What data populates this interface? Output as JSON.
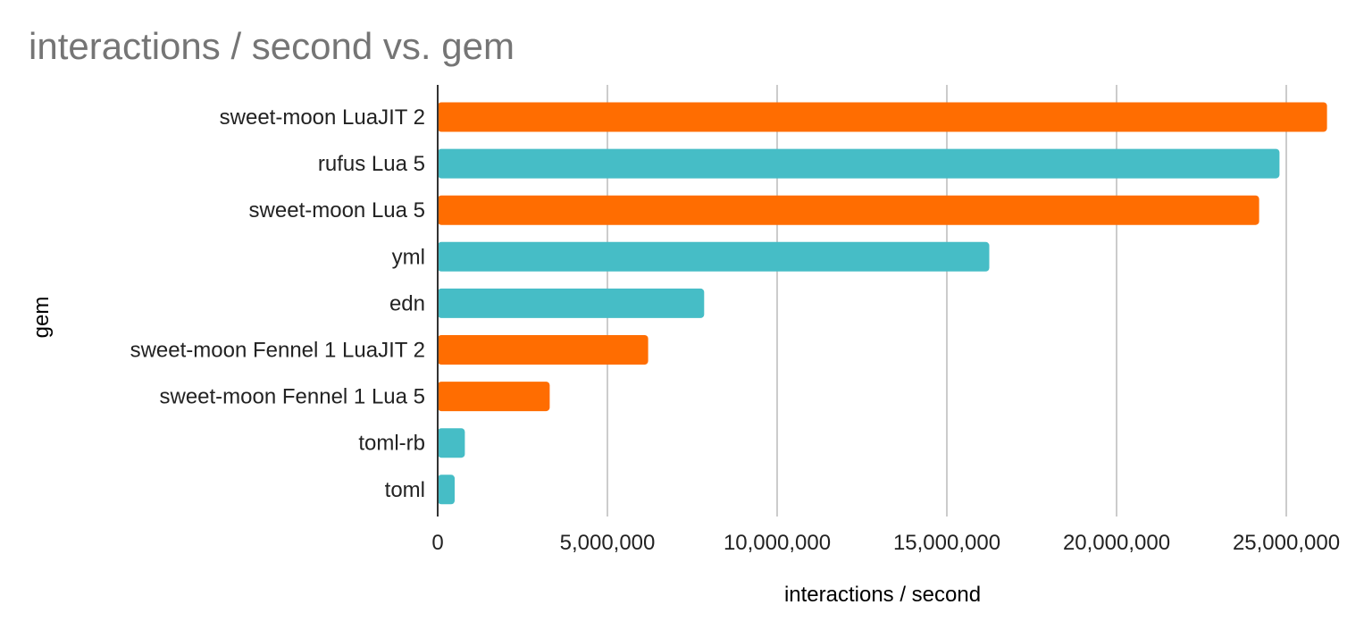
{
  "chart_data": {
    "type": "bar",
    "orientation": "horizontal",
    "title": "interactions / second vs. gem",
    "xlabel": "interactions / second",
    "ylabel": "gem",
    "xlim": [
      0,
      26000000
    ],
    "x_ticks": [
      0,
      5000000,
      10000000,
      15000000,
      20000000,
      25000000
    ],
    "x_tick_labels": [
      "0",
      "5,000,000",
      "10,000,000",
      "15,000,000",
      "20,000,000",
      "25,000,000"
    ],
    "grid": true,
    "legend": "none",
    "categories": [
      "sweet-moon LuaJIT 2",
      "rufus Lua 5",
      "sweet-moon Lua 5",
      "yml",
      "edn",
      "sweet-moon Fennel 1 LuaJIT 2",
      "sweet-moon Fennel 1 Lua 5",
      "toml-rb",
      "toml"
    ],
    "values": [
      26200000,
      24800000,
      24200000,
      16250000,
      7850000,
      6200000,
      3300000,
      800000,
      500000
    ],
    "bar_colors": [
      "#ff6d01",
      "#46bdc6",
      "#ff6d01",
      "#46bdc6",
      "#46bdc6",
      "#ff6d01",
      "#ff6d01",
      "#46bdc6",
      "#46bdc6"
    ]
  }
}
